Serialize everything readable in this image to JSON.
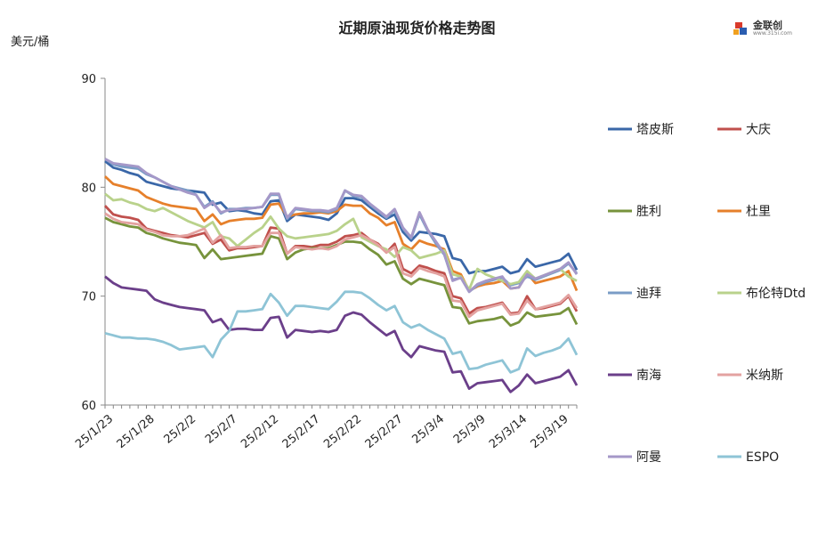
{
  "title": "近期原油现货价格走势图",
  "unit": "美元/桶",
  "logo": {
    "name": "金联创",
    "url": "www.315i.com"
  },
  "chart_data": {
    "type": "line",
    "title": "近期原油现货价格走势图",
    "ylabel": "美元/桶",
    "ylim": [
      60,
      90
    ],
    "yticks": [
      60,
      70,
      80,
      90
    ],
    "x_tick_labels": [
      "25/1/23",
      "25/1/28",
      "25/2/2",
      "25/2/7",
      "25/2/12",
      "25/2/17",
      "25/2/22",
      "25/2/27",
      "25/3/4",
      "25/3/9",
      "25/3/14",
      "25/3/19"
    ],
    "x_tick_index": [
      0,
      5,
      10,
      15,
      20,
      25,
      30,
      35,
      40,
      45,
      50,
      55
    ],
    "grid": false,
    "legend": "right",
    "series": [
      {
        "name": "塔皮斯",
        "color": "#3a67a8",
        "values": [
          82.4,
          81.8,
          81.6,
          81.3,
          81.1,
          80.5,
          80.3,
          80.1,
          79.9,
          79.8,
          79.7,
          79.6,
          79.5,
          78.4,
          78.6,
          77.8,
          77.9,
          77.8,
          77.6,
          77.5,
          78.7,
          78.8,
          76.9,
          77.5,
          77.4,
          77.3,
          77.2,
          77.0,
          77.6,
          79.0,
          79.0,
          78.8,
          78.2,
          77.6,
          77.1,
          77.5,
          75.9,
          75.1,
          75.9,
          75.8,
          75.7,
          75.5,
          73.5,
          73.3,
          72.1,
          72.3,
          72.3,
          72.5,
          72.7,
          72.1,
          72.3,
          73.4,
          72.7,
          72.9,
          73.1,
          73.3,
          73.9,
          72.4
        ]
      },
      {
        "name": "大庆",
        "color": "#c0504d",
        "values": [
          78.3,
          77.5,
          77.3,
          77.2,
          77.0,
          76.2,
          76.0,
          75.8,
          75.6,
          75.5,
          75.4,
          75.6,
          75.8,
          74.8,
          75.2,
          74.2,
          74.4,
          74.4,
          74.5,
          74.6,
          76.3,
          76.2,
          73.9,
          74.6,
          74.6,
          74.5,
          74.7,
          74.7,
          75.0,
          75.5,
          75.6,
          75.8,
          75.2,
          74.8,
          74.0,
          74.8,
          72.5,
          72.1,
          72.8,
          72.6,
          72.3,
          72.1,
          70.0,
          69.8,
          68.4,
          68.9,
          69.0,
          69.2,
          69.4,
          68.4,
          68.5,
          70.0,
          68.8,
          68.9,
          69.1,
          69.3,
          70.0,
          68.6
        ]
      },
      {
        "name": "胜利",
        "color": "#77933c",
        "values": [
          77.2,
          76.8,
          76.6,
          76.4,
          76.3,
          75.8,
          75.6,
          75.3,
          75.1,
          74.9,
          74.8,
          74.7,
          73.5,
          74.3,
          73.4,
          73.5,
          73.6,
          73.7,
          73.8,
          73.9,
          75.5,
          75.3,
          73.4,
          74.0,
          74.3,
          74.4,
          74.4,
          74.4,
          74.7,
          75.0,
          75.0,
          74.9,
          74.3,
          73.8,
          72.9,
          73.2,
          71.6,
          71.1,
          71.6,
          71.4,
          71.2,
          71.0,
          69.0,
          68.9,
          67.5,
          67.7,
          67.8,
          67.9,
          68.1,
          67.3,
          67.6,
          68.5,
          68.1,
          68.2,
          68.3,
          68.4,
          68.9,
          67.4
        ]
      },
      {
        "name": "杜里",
        "color": "#e6802b",
        "values": [
          81.0,
          80.3,
          80.1,
          79.9,
          79.7,
          79.1,
          78.8,
          78.5,
          78.3,
          78.2,
          78.1,
          78.0,
          76.9,
          77.5,
          76.6,
          76.9,
          77.0,
          77.1,
          77.1,
          77.2,
          78.4,
          78.5,
          77.3,
          77.5,
          77.6,
          77.6,
          77.7,
          77.6,
          77.8,
          78.4,
          78.3,
          78.3,
          77.6,
          77.2,
          76.5,
          76.8,
          74.8,
          74.3,
          75.1,
          74.8,
          74.6,
          74.3,
          72.3,
          72.0,
          70.5,
          70.9,
          71.1,
          71.2,
          71.4,
          70.7,
          70.8,
          72.1,
          71.2,
          71.4,
          71.6,
          71.8,
          72.3,
          70.5
        ]
      },
      {
        "name": "迪拜",
        "color": "#7a9cc6",
        "values": [
          82.6,
          82.1,
          81.9,
          81.8,
          81.7,
          81.2,
          80.9,
          80.5,
          80.1,
          79.9,
          79.7,
          79.3,
          78.2,
          78.7,
          77.6,
          78.0,
          78.0,
          78.1,
          78.1,
          78.2,
          79.3,
          79.3,
          77.1,
          78.0,
          77.9,
          77.8,
          77.8,
          77.7,
          78.0,
          79.7,
          79.2,
          79.1,
          78.4,
          77.8,
          77.2,
          77.9,
          76.2,
          75.3,
          77.5,
          76.0,
          74.8,
          73.8,
          71.5,
          71.7,
          70.4,
          71.0,
          71.3,
          71.5,
          71.7,
          71.0,
          71.2,
          71.8,
          71.5,
          71.8,
          72.1,
          72.4,
          73.0,
          72.1
        ]
      },
      {
        "name": "布伦特Dtd",
        "color": "#b9d28b",
        "values": [
          79.4,
          78.8,
          78.9,
          78.6,
          78.4,
          78.0,
          77.8,
          78.1,
          77.7,
          77.3,
          76.9,
          76.6,
          76.3,
          76.8,
          75.5,
          75.3,
          74.6,
          75.2,
          75.8,
          76.3,
          77.3,
          76.2,
          75.5,
          75.3,
          75.4,
          75.5,
          75.6,
          75.7,
          76.0,
          76.6,
          77.1,
          75.4,
          75.0,
          74.6,
          74.3,
          73.6,
          74.5,
          74.2,
          73.5,
          73.7,
          73.9,
          74.2,
          72.0,
          71.8,
          70.6,
          72.5,
          72.0,
          71.7,
          71.4,
          71.1,
          71.3,
          72.3,
          71.6,
          71.9,
          72.2,
          72.5,
          71.8,
          71.4
        ]
      },
      {
        "name": "南海",
        "color": "#6b3f8a",
        "values": [
          71.8,
          71.2,
          70.8,
          70.7,
          70.6,
          70.5,
          69.7,
          69.4,
          69.2,
          69.0,
          68.9,
          68.8,
          68.7,
          67.6,
          67.9,
          66.9,
          67.0,
          67.0,
          66.9,
          66.9,
          68.0,
          68.1,
          66.2,
          66.9,
          66.8,
          66.7,
          66.8,
          66.7,
          66.9,
          68.2,
          68.5,
          68.3,
          67.6,
          67.0,
          66.4,
          66.8,
          65.1,
          64.4,
          65.4,
          65.2,
          65.0,
          64.9,
          63.0,
          63.1,
          61.5,
          62.0,
          62.1,
          62.2,
          62.3,
          61.2,
          61.8,
          62.8,
          62.0,
          62.2,
          62.4,
          62.6,
          63.2,
          61.8
        ]
      },
      {
        "name": "米纳斯",
        "color": "#e3a2a0",
        "values": [
          77.6,
          77.1,
          76.8,
          76.7,
          76.6,
          76.1,
          75.9,
          75.6,
          75.5,
          75.5,
          75.6,
          75.9,
          76.2,
          74.9,
          75.6,
          74.4,
          74.5,
          74.5,
          74.6,
          74.6,
          75.8,
          75.8,
          73.9,
          74.5,
          74.4,
          74.3,
          74.4,
          74.3,
          74.6,
          75.2,
          75.4,
          75.6,
          75.2,
          74.7,
          74.0,
          74.5,
          72.1,
          71.8,
          72.6,
          72.3,
          72.1,
          71.8,
          69.6,
          69.5,
          68.1,
          68.7,
          68.9,
          69.1,
          69.3,
          68.3,
          68.4,
          69.6,
          68.8,
          69.0,
          69.2,
          69.4,
          70.1,
          68.9
        ]
      },
      {
        "name": "阿曼",
        "color": "#a598c8",
        "values": [
          82.6,
          82.2,
          82.1,
          82.0,
          81.9,
          81.3,
          80.9,
          80.5,
          80.1,
          79.8,
          79.5,
          79.3,
          78.1,
          78.6,
          77.7,
          77.9,
          78.0,
          78.0,
          78.1,
          78.2,
          79.4,
          79.4,
          77.2,
          78.1,
          78.0,
          77.9,
          77.9,
          77.8,
          78.1,
          79.7,
          79.3,
          79.2,
          78.5,
          77.9,
          77.3,
          78.0,
          76.3,
          75.4,
          77.7,
          76.1,
          75.0,
          73.9,
          71.4,
          71.7,
          70.4,
          71.1,
          71.4,
          71.6,
          71.8,
          70.7,
          70.8,
          72.0,
          71.6,
          71.9,
          72.2,
          72.5,
          73.1,
          72.0
        ]
      },
      {
        "name": "ESPO",
        "color": "#8ec4d6",
        "values": [
          66.6,
          66.4,
          66.2,
          66.2,
          66.1,
          66.1,
          66.0,
          65.8,
          65.5,
          65.1,
          65.2,
          65.3,
          65.4,
          64.4,
          66.0,
          66.8,
          68.6,
          68.6,
          68.7,
          68.8,
          70.2,
          69.4,
          68.2,
          69.1,
          69.1,
          69.0,
          68.9,
          68.8,
          69.5,
          70.4,
          70.4,
          70.3,
          69.8,
          69.2,
          68.7,
          69.1,
          67.6,
          67.1,
          67.4,
          66.9,
          66.5,
          66.1,
          64.7,
          64.9,
          63.3,
          63.4,
          63.7,
          63.9,
          64.1,
          63.0,
          63.3,
          65.2,
          64.5,
          64.8,
          65.0,
          65.3,
          66.1,
          64.6
        ]
      }
    ]
  }
}
